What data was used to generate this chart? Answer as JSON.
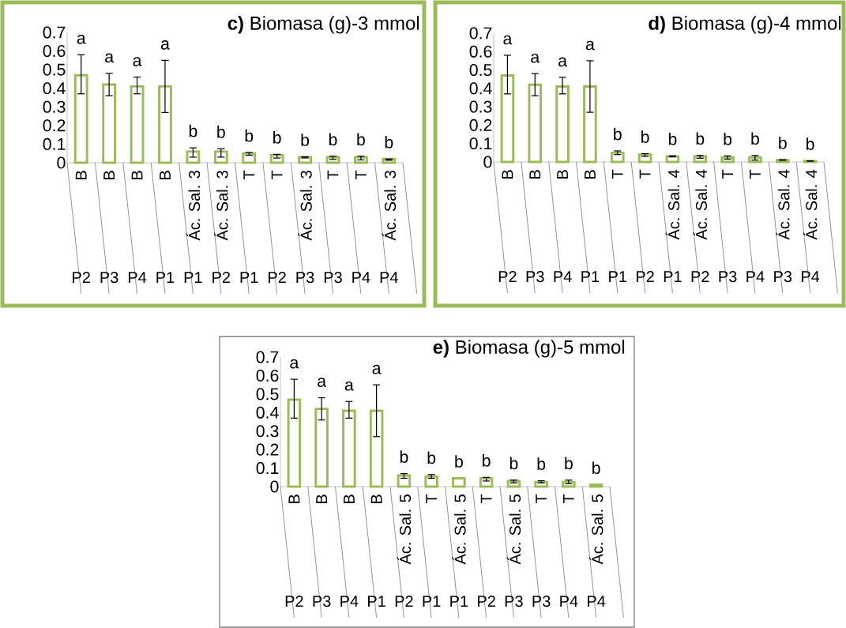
{
  "chart_data": [
    {
      "type": "bar",
      "title": "**c)** Biomasa (g)-3 mmol",
      "color": "#9bbb59",
      "categories": [
        "B",
        "B",
        "B",
        "B",
        "Ác. Sal. 3",
        "Ác. Sal. 3",
        "T",
        "T",
        "Ác. Sal. 3",
        "T",
        "T",
        "Ác. Sal. 3"
      ],
      "values": [
        0.47,
        0.42,
        0.41,
        0.41,
        0.06,
        0.06,
        0.05,
        0.04,
        0.03,
        0.03,
        0.03,
        0.02
      ],
      "errors": [
        [
          0.37,
          0.58
        ],
        [
          0.36,
          0.48
        ],
        [
          0.37,
          0.46
        ],
        [
          0.27,
          0.55
        ],
        [
          0.03,
          0.08
        ],
        [
          0.03,
          0.075
        ],
        [
          0.04,
          0.055
        ],
        [
          0.025,
          0.045
        ],
        [
          0.026,
          0.032
        ],
        [
          0.018,
          0.035
        ],
        [
          0.015,
          0.035
        ],
        [
          0.013,
          0.02
        ]
      ],
      "ylim": [
        0,
        0.7
      ],
      "yticks": [
        0,
        0.1,
        0.2,
        0.3,
        0.4,
        0.5,
        0.6,
        0.7
      ],
      "annotations": [
        "a",
        "a",
        "a",
        "a",
        "b",
        "b",
        "b",
        "b",
        "b",
        "b",
        "b",
        "b",
        "P2",
        "P3",
        "P4",
        "P1",
        "P1",
        "P2",
        "P1",
        "P2",
        "P3",
        "P3",
        "P4",
        "P4"
      ]
    },
    {
      "type": "bar",
      "title": "**d)** Biomasa (g)-4 mmol",
      "color": "#9bbb59",
      "categories": [
        "B",
        "B",
        "B",
        "B",
        "T",
        "T",
        "Ác. Sal. 4",
        "Ác. Sal. 4",
        "T",
        "T",
        "Ác. Sal. 4",
        "Ác. Sal. 4"
      ],
      "values": [
        0.47,
        0.42,
        0.41,
        0.41,
        0.05,
        0.04,
        0.03,
        0.03,
        0.025,
        0.025,
        0.01,
        0.005
      ],
      "errors": [
        [
          0.37,
          0.58
        ],
        [
          0.36,
          0.48
        ],
        [
          0.37,
          0.46
        ],
        [
          0.27,
          0.55
        ],
        [
          0.04,
          0.06
        ],
        [
          0.03,
          0.045
        ],
        [
          0.028,
          0.033
        ],
        [
          0.02,
          0.035
        ],
        [
          0.015,
          0.033
        ],
        [
          0.01,
          0.035
        ],
        [
          0.009,
          0.012
        ],
        [
          0.004,
          0.006
        ]
      ],
      "ylim": [
        0,
        0.7
      ],
      "yticks": [
        0,
        0.1,
        0.2,
        0.3,
        0.4,
        0.5,
        0.6,
        0.7
      ],
      "annotations": [
        "a",
        "a",
        "a",
        "a",
        "b",
        "b",
        "b",
        "b",
        "b",
        "b",
        "b",
        "b",
        "P2",
        "P3",
        "P4",
        "P1",
        "P1",
        "P2",
        "P1",
        "P2",
        "P3",
        "P4",
        "P3",
        "P4"
      ]
    },
    {
      "type": "bar",
      "title": "**e)** Biomasa (g)-5 mmol",
      "color": "#9bbb59",
      "categories": [
        "B",
        "B",
        "B",
        "B",
        "Ác. Sal. 5",
        "T",
        "Ác. Sal. 5",
        "T",
        "Ác. Sal. 5",
        "T",
        "T",
        "Ác. Sal. 5"
      ],
      "values": [
        0.47,
        0.42,
        0.41,
        0.41,
        0.06,
        0.055,
        0.045,
        0.045,
        0.03,
        0.025,
        0.025,
        0.01
      ],
      "errors": [
        [
          0.37,
          0.58
        ],
        [
          0.36,
          0.48
        ],
        [
          0.37,
          0.46
        ],
        [
          0.27,
          0.55
        ],
        [
          0.045,
          0.07
        ],
        [
          0.045,
          0.065
        ],
        null,
        [
          0.03,
          0.05
        ],
        [
          0.02,
          0.035
        ],
        [
          0.02,
          0.032
        ],
        [
          0.015,
          0.035
        ],
        null
      ],
      "ylim": [
        0,
        0.7
      ],
      "yticks": [
        0,
        0.1,
        0.2,
        0.3,
        0.4,
        0.5,
        0.6,
        0.7
      ],
      "annotations": [
        "a",
        "a",
        "a",
        "a",
        "b",
        "b",
        "b",
        "b",
        "b",
        "b",
        "b",
        "b",
        "P2",
        "P3",
        "P4",
        "P1",
        "P2",
        "P1",
        "P1",
        "P2",
        "P3",
        "P3",
        "P4",
        "P4"
      ]
    }
  ]
}
